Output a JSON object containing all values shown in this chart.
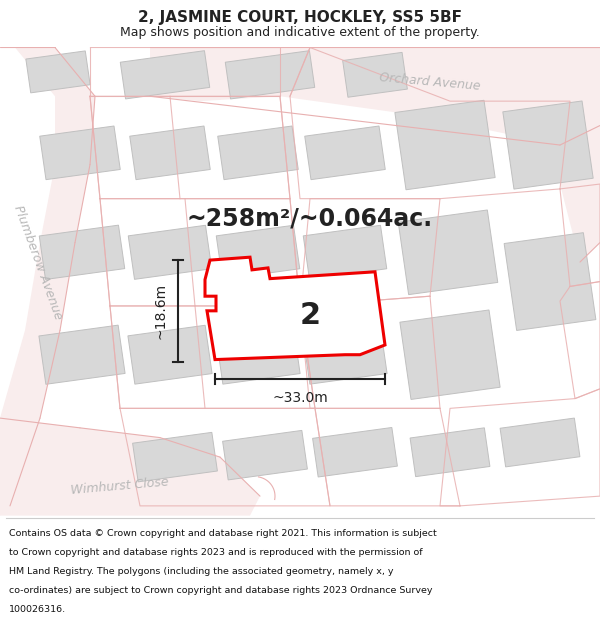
{
  "title": "2, JASMINE COURT, HOCKLEY, SS5 5BF",
  "subtitle": "Map shows position and indicative extent of the property.",
  "area_text": "~258m²/~0.064ac.",
  "width_label": "~33.0m",
  "height_label": "~18.6m",
  "property_number": "2",
  "footer_lines": [
    "Contains OS data © Crown copyright and database right 2021. This information is subject",
    "to Crown copyright and database rights 2023 and is reproduced with the permission of",
    "HM Land Registry. The polygons (including the associated geometry, namely x, y",
    "co-ordinates) are subject to Crown copyright and database rights 2023 Ordnance Survey",
    "100026316."
  ],
  "map_bg": "#ffffff",
  "road_fill": "#f9eded",
  "road_line": "#e8b0b0",
  "building_fc": "#d8d8d8",
  "building_ec": "#c0c0c0",
  "highlight_color": "#ee0000",
  "highlight_fill": "#ffffff",
  "street_color": "#b8b8b8",
  "text_color": "#222222",
  "footer_color": "#111111",
  "title_fontsize": 11,
  "subtitle_fontsize": 9,
  "area_fontsize": 17,
  "dim_fontsize": 10,
  "street_fontsize": 9,
  "num_fontsize": 22,
  "footer_fontsize": 6.8
}
